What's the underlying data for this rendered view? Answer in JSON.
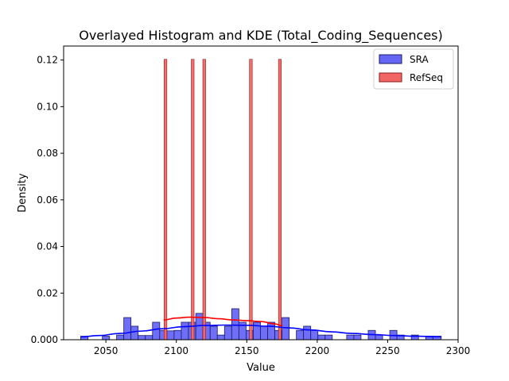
{
  "chart_data": {
    "type": "histogram",
    "title": "Overlayed Histogram and KDE (Total_Coding_Sequences)",
    "xlabel": "Value",
    "ylabel": "Density",
    "xlim": [
      2020,
      2300
    ],
    "ylim": [
      0,
      0.126
    ],
    "grid": false,
    "legend_position": "top-right",
    "x_ticks": [
      2050,
      2100,
      2150,
      2200,
      2250,
      2300
    ],
    "y_ticks": [
      0.0,
      0.02,
      0.04,
      0.06,
      0.08,
      0.1,
      0.12
    ],
    "x_tick_labels": [
      "2050",
      "2100",
      "2150",
      "2200",
      "2250",
      "2300"
    ],
    "y_tick_labels": [
      "0.000",
      "0.02",
      "0.04",
      "0.06",
      "0.08",
      "0.10",
      "0.12"
    ],
    "series": [
      {
        "name": "SRA",
        "color": "#0000ff",
        "fill": "#6666f5",
        "bins": [
          {
            "x0": 2032.1,
            "x1": 2037.3,
            "y": 0.0015
          },
          {
            "x0": 2047.5,
            "x1": 2052.6,
            "y": 0.0015
          },
          {
            "x0": 2057.6,
            "x1": 2062.7,
            "y": 0.002
          },
          {
            "x0": 2062.7,
            "x1": 2067.8,
            "y": 0.0095
          },
          {
            "x0": 2067.8,
            "x1": 2072.9,
            "y": 0.0058
          },
          {
            "x0": 2072.9,
            "x1": 2078.0,
            "y": 0.0018
          },
          {
            "x0": 2078.0,
            "x1": 2083.1,
            "y": 0.0018
          },
          {
            "x0": 2083.1,
            "x1": 2088.2,
            "y": 0.0075
          },
          {
            "x0": 2088.2,
            "x1": 2093.3,
            "y": 0.004
          },
          {
            "x0": 2093.3,
            "x1": 2098.4,
            "y": 0.0038
          },
          {
            "x0": 2098.4,
            "x1": 2103.5,
            "y": 0.004
          },
          {
            "x0": 2103.5,
            "x1": 2108.6,
            "y": 0.0075
          },
          {
            "x0": 2108.6,
            "x1": 2113.8,
            "y": 0.0075
          },
          {
            "x0": 2113.8,
            "x1": 2118.9,
            "y": 0.0113
          },
          {
            "x0": 2118.9,
            "x1": 2124.0,
            "y": 0.0075
          },
          {
            "x0": 2124.0,
            "x1": 2129.1,
            "y": 0.0058
          },
          {
            "x0": 2129.1,
            "x1": 2134.2,
            "y": 0.002
          },
          {
            "x0": 2134.2,
            "x1": 2139.3,
            "y": 0.0058
          },
          {
            "x0": 2139.3,
            "x1": 2144.4,
            "y": 0.0133
          },
          {
            "x0": 2144.4,
            "x1": 2149.5,
            "y": 0.0075
          },
          {
            "x0": 2149.5,
            "x1": 2154.6,
            "y": 0.004
          },
          {
            "x0": 2154.6,
            "x1": 2159.7,
            "y": 0.0075
          },
          {
            "x0": 2159.7,
            "x1": 2164.8,
            "y": 0.0058
          },
          {
            "x0": 2164.8,
            "x1": 2169.9,
            "y": 0.0075
          },
          {
            "x0": 2169.9,
            "x1": 2175.0,
            "y": 0.004
          },
          {
            "x0": 2175.0,
            "x1": 2180.1,
            "y": 0.0095
          },
          {
            "x0": 2185.2,
            "x1": 2190.3,
            "y": 0.004
          },
          {
            "x0": 2190.3,
            "x1": 2195.4,
            "y": 0.0058
          },
          {
            "x0": 2195.4,
            "x1": 2200.5,
            "y": 0.004
          },
          {
            "x0": 2200.5,
            "x1": 2205.6,
            "y": 0.002
          },
          {
            "x0": 2205.6,
            "x1": 2210.7,
            "y": 0.002
          },
          {
            "x0": 2220.9,
            "x1": 2226.0,
            "y": 0.002
          },
          {
            "x0": 2226.0,
            "x1": 2231.1,
            "y": 0.002
          },
          {
            "x0": 2236.2,
            "x1": 2241.3,
            "y": 0.004
          },
          {
            "x0": 2241.3,
            "x1": 2246.4,
            "y": 0.002
          },
          {
            "x0": 2251.5,
            "x1": 2256.6,
            "y": 0.004
          },
          {
            "x0": 2256.6,
            "x1": 2261.7,
            "y": 0.002
          },
          {
            "x0": 2266.8,
            "x1": 2271.9,
            "y": 0.002
          },
          {
            "x0": 2277.0,
            "x1": 2282.1,
            "y": 0.0015
          },
          {
            "x0": 2282.1,
            "x1": 2288.0,
            "y": 0.0015
          }
        ],
        "kde": {
          "x": [
            2032,
            2045,
            2060,
            2075,
            2090,
            2105,
            2120,
            2135,
            2150,
            2165,
            2180,
            2195,
            2210,
            2225,
            2240,
            2255,
            2270,
            2288
          ],
          "y": [
            0.0012,
            0.0018,
            0.0027,
            0.0037,
            0.0047,
            0.0056,
            0.0061,
            0.0063,
            0.0062,
            0.0058,
            0.0051,
            0.0042,
            0.0034,
            0.0027,
            0.0022,
            0.0018,
            0.0015,
            0.0013
          ]
        }
      },
      {
        "name": "RefSeq",
        "color": "#ff0000",
        "fill": "#f26666",
        "bins": [
          {
            "x0": 2091.3,
            "x1": 2093.3,
            "y": 0.1203
          },
          {
            "x0": 2110.6,
            "x1": 2112.6,
            "y": 0.1203
          },
          {
            "x0": 2118.8,
            "x1": 2120.8,
            "y": 0.1203
          },
          {
            "x0": 2151.9,
            "x1": 2153.9,
            "y": 0.1203
          },
          {
            "x0": 2172.5,
            "x1": 2174.5,
            "y": 0.1203
          }
        ],
        "kde": {
          "x": [
            2091,
            2100,
            2110,
            2120,
            2130,
            2140,
            2150,
            2160,
            2170,
            2175
          ],
          "y": [
            0.0085,
            0.0093,
            0.0097,
            0.0095,
            0.009,
            0.0085,
            0.0082,
            0.0078,
            0.0068,
            0.006
          ]
        }
      }
    ]
  }
}
